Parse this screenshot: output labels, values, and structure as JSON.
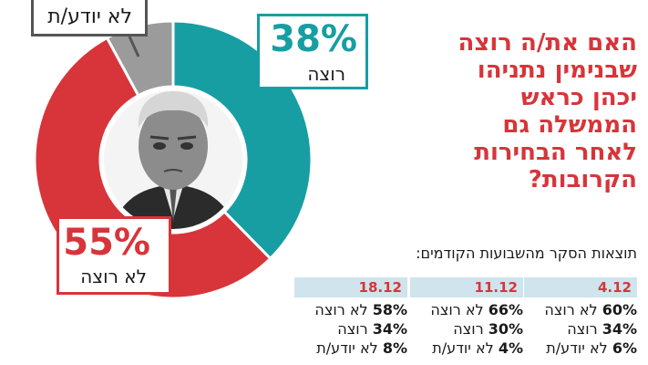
{
  "headline": [
    "האם את/ה רוצה",
    "שבנימין נתניהו",
    "יכהן כראש",
    "הממשלה גם",
    "לאחר הבחירות",
    "הקרובות?"
  ],
  "chart_data": {
    "type": "pie",
    "style": "donut",
    "slices": [
      {
        "label": "רוצה",
        "value": 38,
        "display": "38%",
        "color": "#179ea3"
      },
      {
        "label": "לא רוצה",
        "value": 55,
        "display": "55%",
        "color": "#d7353a"
      },
      {
        "label": "לא יודע/ת",
        "value": 8,
        "color": "#9b9b9b"
      }
    ]
  },
  "previous": {
    "title": "תוצאות הסקר מהשבועות הקודמים:",
    "weeks": [
      {
        "date": "4.12",
        "rows": [
          {
            "pct": "60%",
            "label": "לא רוצה"
          },
          {
            "pct": "34%",
            "label": "רוצה"
          },
          {
            "pct": "6%",
            "label": "לא יודע/ת"
          }
        ]
      },
      {
        "date": "11.12",
        "rows": [
          {
            "pct": "66%",
            "label": "לא רוצה"
          },
          {
            "pct": "30%",
            "label": "רוצה"
          },
          {
            "pct": "4%",
            "label": "לא יודע/ת"
          }
        ]
      },
      {
        "date": "18.12",
        "rows": [
          {
            "pct": "58%",
            "label": "לא רוצה"
          },
          {
            "pct": "34%",
            "label": "רוצה"
          },
          {
            "pct": "8%",
            "label": "לא יודע/ת"
          }
        ]
      }
    ]
  }
}
